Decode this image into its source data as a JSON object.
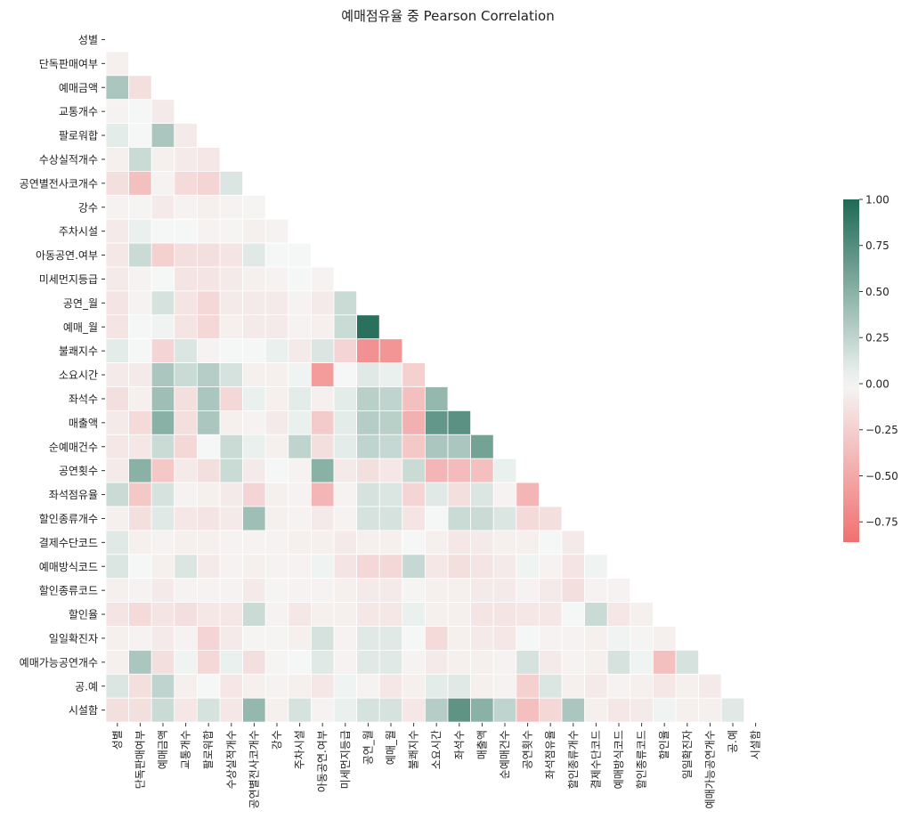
{
  "chart_data": {
    "type": "heatmap",
    "title": "예매점유율 중 Pearson Correlation",
    "variables": [
      "성별",
      "단독판매여부",
      "예매금액",
      "교통개수",
      "팔로워합",
      "수상실적개수",
      "공연별전사코개수",
      "강수",
      "주차시설",
      "아동공연.여부",
      "미세먼지등급",
      "공연_월",
      "예매_월",
      "불쾌지수",
      "소요시간",
      "좌석수",
      "매출액",
      "순예매건수",
      "공연횟수",
      "좌석점유율",
      "할인종류개수",
      "결제수단코드",
      "예매방식코드",
      "할인종류코드",
      "할인율",
      "일일확진자",
      "예매가능공연개수",
      "공.예",
      "시설함"
    ],
    "matrix": [
      [],
      [
        -0.05
      ],
      [
        0.35,
        -0.15
      ],
      [
        -0.03,
        0.0,
        -0.08
      ],
      [
        0.08,
        0.0,
        0.35,
        -0.08
      ],
      [
        -0.05,
        0.2,
        -0.05,
        -0.08,
        -0.1
      ],
      [
        -0.15,
        -0.35,
        -0.03,
        -0.18,
        -0.22,
        0.12
      ],
      [
        -0.03,
        -0.02,
        -0.08,
        -0.03,
        -0.05,
        -0.03,
        -0.02
      ],
      [
        -0.08,
        0.05,
        0.0,
        0.0,
        -0.03,
        -0.02,
        -0.05,
        -0.03
      ],
      [
        -0.1,
        0.2,
        -0.25,
        -0.15,
        -0.15,
        -0.12,
        0.1,
        0.0,
        0.0
      ],
      [
        -0.08,
        -0.03,
        0.0,
        -0.12,
        -0.12,
        -0.08,
        -0.05,
        -0.03,
        0.0,
        -0.03
      ],
      [
        -0.12,
        -0.03,
        0.15,
        -0.12,
        -0.2,
        -0.08,
        -0.08,
        -0.08,
        -0.03,
        -0.08,
        0.2
      ],
      [
        -0.12,
        0.0,
        0.03,
        -0.12,
        -0.2,
        -0.05,
        -0.08,
        -0.08,
        -0.03,
        -0.05,
        0.2,
        0.95
      ],
      [
        0.08,
        0.0,
        -0.22,
        0.12,
        -0.03,
        0.0,
        0.0,
        0.05,
        -0.08,
        0.12,
        -0.22,
        -0.65,
        -0.62
      ],
      [
        -0.08,
        -0.08,
        0.35,
        0.2,
        0.3,
        0.15,
        -0.05,
        -0.05,
        0.03,
        -0.58,
        0.0,
        0.1,
        0.05,
        -0.25
      ],
      [
        -0.15,
        -0.05,
        0.4,
        -0.15,
        0.35,
        -0.2,
        0.05,
        -0.05,
        0.08,
        -0.05,
        0.08,
        0.28,
        0.25,
        -0.35,
        0.45
      ],
      [
        -0.08,
        -0.18,
        0.5,
        -0.15,
        0.35,
        -0.05,
        -0.03,
        -0.08,
        0.05,
        -0.28,
        0.08,
        0.3,
        0.28,
        -0.45,
        0.68,
        0.72
      ],
      [
        -0.1,
        -0.1,
        0.2,
        -0.2,
        0.0,
        0.2,
        0.05,
        -0.05,
        0.25,
        -0.15,
        0.08,
        0.25,
        0.22,
        -0.3,
        0.35,
        0.35,
        0.6
      ],
      [
        -0.08,
        0.5,
        -0.3,
        -0.08,
        -0.15,
        0.2,
        -0.08,
        0.0,
        -0.03,
        0.5,
        -0.08,
        -0.15,
        -0.1,
        0.2,
        -0.42,
        -0.38,
        -0.35,
        0.05
      ],
      [
        0.2,
        -0.3,
        0.15,
        -0.03,
        -0.05,
        -0.08,
        -0.22,
        -0.05,
        -0.03,
        -0.42,
        -0.03,
        0.15,
        0.12,
        -0.22,
        0.1,
        -0.15,
        0.12,
        -0.03,
        -0.42
      ],
      [
        -0.05,
        -0.15,
        0.1,
        -0.1,
        -0.12,
        -0.08,
        0.4,
        -0.05,
        -0.03,
        -0.08,
        -0.03,
        0.15,
        0.15,
        -0.12,
        0.0,
        0.2,
        0.2,
        0.12,
        -0.18,
        -0.15
      ],
      [
        0.1,
        -0.05,
        -0.03,
        -0.05,
        -0.05,
        -0.03,
        -0.03,
        -0.03,
        -0.05,
        -0.05,
        -0.08,
        -0.05,
        -0.05,
        0.0,
        -0.05,
        -0.1,
        -0.08,
        -0.05,
        -0.05,
        0.0,
        -0.08
      ],
      [
        0.12,
        0.0,
        -0.05,
        0.12,
        -0.08,
        -0.03,
        -0.05,
        -0.03,
        -0.03,
        0.03,
        -0.12,
        -0.2,
        -0.2,
        0.22,
        -0.1,
        -0.15,
        -0.12,
        -0.08,
        0.03,
        -0.03,
        -0.12,
        0.03
      ],
      [
        -0.05,
        -0.03,
        -0.08,
        -0.03,
        -0.03,
        -0.03,
        -0.08,
        -0.02,
        -0.03,
        -0.03,
        -0.05,
        -0.08,
        -0.08,
        -0.02,
        -0.05,
        -0.05,
        -0.08,
        -0.08,
        -0.03,
        -0.08,
        -0.15,
        -0.03,
        -0.03
      ],
      [
        -0.12,
        -0.18,
        -0.12,
        -0.15,
        -0.1,
        -0.1,
        0.2,
        -0.03,
        -0.1,
        -0.05,
        -0.05,
        -0.1,
        -0.1,
        0.05,
        -0.05,
        -0.05,
        -0.12,
        -0.12,
        -0.1,
        -0.1,
        0.0,
        0.2,
        -0.1,
        -0.05
      ],
      [
        -0.05,
        -0.03,
        -0.08,
        -0.03,
        -0.22,
        -0.08,
        -0.02,
        -0.02,
        -0.05,
        0.15,
        -0.03,
        0.1,
        0.1,
        0.0,
        -0.18,
        -0.05,
        -0.08,
        -0.1,
        0.0,
        -0.03,
        -0.03,
        -0.05,
        0.03,
        -0.02,
        -0.05
      ],
      [
        -0.05,
        0.35,
        -0.15,
        0.03,
        -0.2,
        0.05,
        -0.15,
        -0.02,
        0.0,
        0.1,
        -0.03,
        0.1,
        0.1,
        -0.03,
        -0.08,
        -0.05,
        -0.05,
        -0.03,
        0.15,
        -0.08,
        -0.03,
        -0.05,
        0.15,
        0.03,
        -0.35,
        0.15
      ],
      [
        0.12,
        -0.15,
        0.25,
        -0.05,
        0.0,
        -0.1,
        -0.05,
        -0.03,
        -0.05,
        -0.1,
        0.03,
        -0.03,
        -0.1,
        -0.05,
        0.08,
        0.1,
        -0.05,
        -0.03,
        -0.25,
        0.12,
        -0.05,
        -0.08,
        -0.03,
        -0.05,
        -0.1,
        -0.05,
        -0.08
      ],
      [
        -0.15,
        -0.15,
        0.2,
        -0.1,
        0.15,
        -0.1,
        0.45,
        -0.05,
        0.15,
        -0.03,
        0.05,
        0.15,
        0.15,
        -0.1,
        0.3,
        0.7,
        0.5,
        0.25,
        -0.35,
        -0.2,
        0.35,
        -0.05,
        -0.1,
        -0.08,
        0.03,
        -0.05,
        -0.05,
        0.1
      ]
    ],
    "colorbar": {
      "min": -0.86,
      "max": 1.0,
      "ticks": [
        1.0,
        0.75,
        0.5,
        0.25,
        0.0,
        -0.25,
        -0.5,
        -0.75
      ],
      "tick_labels": [
        "1.00",
        "0.75",
        "0.50",
        "0.25",
        "0.00",
        "−0.25",
        "−0.50",
        "−0.75"
      ],
      "colors": {
        "negative": "#f07070",
        "neutral": "#f5f7f6",
        "positive": "#1e6a55"
      }
    },
    "mask": "upper-triangle",
    "grid_line_color": "#ffffff"
  }
}
